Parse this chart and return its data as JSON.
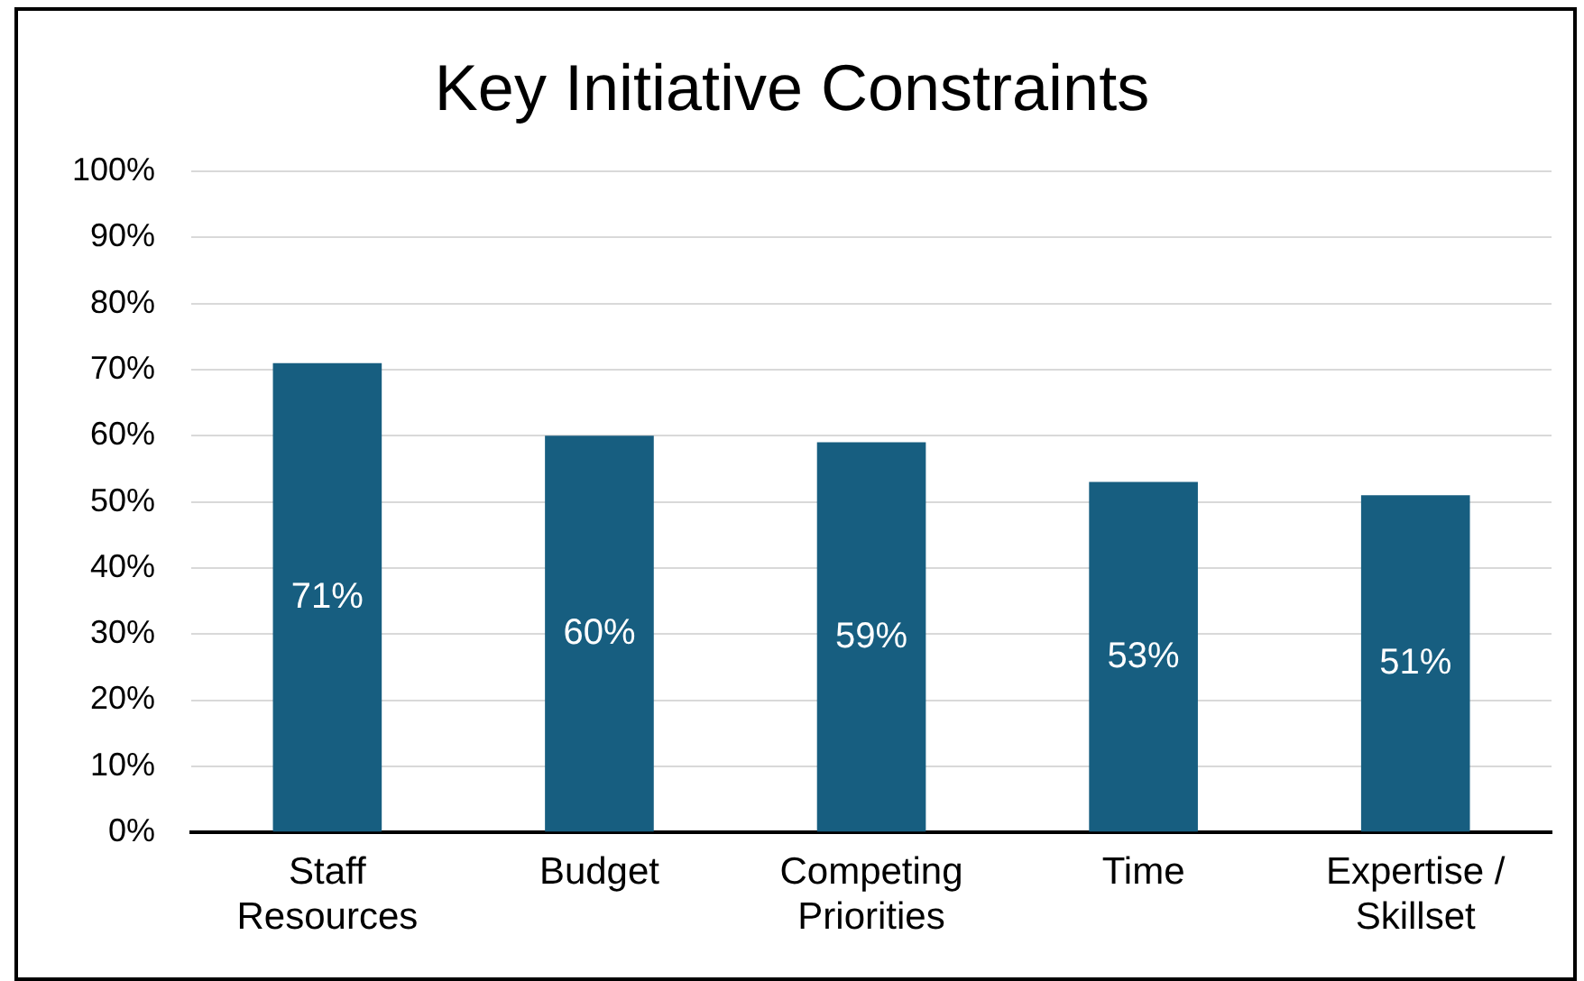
{
  "chart_data": {
    "type": "bar",
    "title": "Key Initiative Constraints",
    "categories": [
      "Staff Resources",
      "Budget",
      "Competing Priorities",
      "Time",
      "Expertise / Skillset"
    ],
    "values": [
      71,
      60,
      59,
      53,
      51
    ],
    "color": "#175e80",
    "ylim": [
      0,
      100
    ],
    "yticks": [
      {
        "value": 0,
        "label": "0%"
      },
      {
        "value": 10,
        "label": "10%"
      },
      {
        "value": 20,
        "label": "20%"
      },
      {
        "value": 30,
        "label": "30%"
      },
      {
        "value": 40,
        "label": "40%"
      },
      {
        "value": 50,
        "label": "50%"
      },
      {
        "value": 60,
        "label": "60%"
      },
      {
        "value": 70,
        "label": "70%"
      },
      {
        "value": 80,
        "label": "80%"
      },
      {
        "value": 90,
        "label": "90%"
      },
      {
        "value": 100,
        "label": "100%"
      }
    ],
    "grid": "y",
    "legend": false,
    "value_labels": [
      "71%",
      "60%",
      "59%",
      "53%",
      "51%"
    ]
  }
}
